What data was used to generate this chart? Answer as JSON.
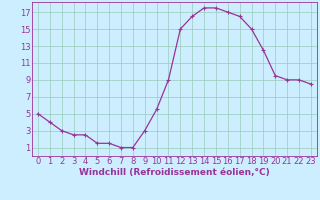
{
  "x": [
    0,
    1,
    2,
    3,
    4,
    5,
    6,
    7,
    8,
    9,
    10,
    11,
    12,
    13,
    14,
    15,
    16,
    17,
    18,
    19,
    20,
    21,
    22,
    23
  ],
  "y": [
    5,
    4,
    3,
    2.5,
    2.5,
    1.5,
    1.5,
    1,
    1,
    3,
    5.5,
    9,
    15,
    16.5,
    17.5,
    17.5,
    17,
    16.5,
    15,
    12.5,
    9.5,
    9,
    9,
    8.5
  ],
  "line_color": "#993399",
  "marker": "+",
  "marker_size": 3.5,
  "marker_lw": 0.8,
  "bg_color": "#cceeff",
  "grid_color": "#99ccbb",
  "xlabel": "Windchill (Refroidissement éolien,°C)",
  "xlabel_color": "#993399",
  "tick_color": "#993399",
  "ylabel_ticks": [
    1,
    3,
    5,
    7,
    9,
    11,
    13,
    15,
    17
  ],
  "xtick_labels": [
    "0",
    "1",
    "2",
    "3",
    "4",
    "5",
    "6",
    "7",
    "8",
    "9",
    "10",
    "11",
    "12",
    "13",
    "14",
    "15",
    "16",
    "17",
    "18",
    "19",
    "20",
    "21",
    "22",
    "23"
  ],
  "xlim": [
    -0.5,
    23.5
  ],
  "ylim": [
    0.0,
    18.2
  ],
  "xlabel_fontsize": 6.5,
  "tick_fontsize": 6.0,
  "line_width": 0.9
}
